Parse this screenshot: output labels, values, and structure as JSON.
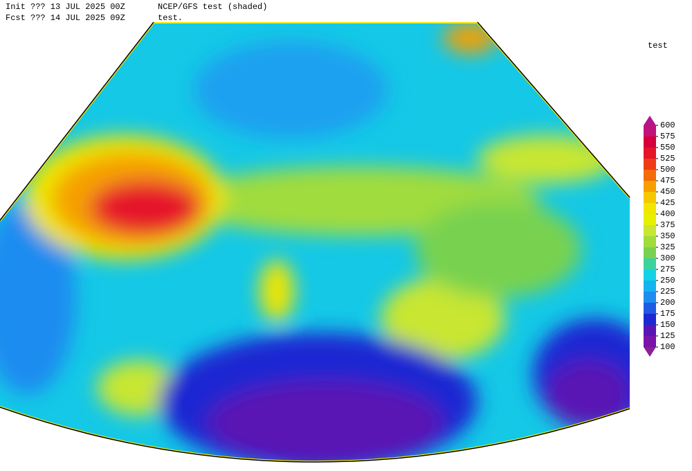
{
  "header": {
    "init": "Init  ??? 13 JUL 2025 00Z",
    "model": "NCEP/GFS test (shaded)",
    "forecast": "Fcst ??? 14 JUL 2025 09Z",
    "field": "test."
  },
  "colorbar": {
    "title": "test",
    "levels": [
      100,
      125,
      150,
      175,
      200,
      225,
      250,
      275,
      300,
      325,
      350,
      375,
      400,
      425,
      450,
      475,
      500,
      525,
      550,
      575,
      600
    ],
    "colors": [
      "#8c1e96",
      "#7814aa",
      "#5a14b4",
      "#1e28d2",
      "#1e5ae6",
      "#1e8cf0",
      "#14b4f0",
      "#14d2e6",
      "#3cd2a0",
      "#78d250",
      "#a0dc3c",
      "#c8e632",
      "#e6f000",
      "#f0e600",
      "#f5c800",
      "#f5a000",
      "#f56a0a",
      "#f03c14",
      "#e6152a",
      "#d7003c",
      "#c0147a",
      "#b4148c"
    ]
  }
}
